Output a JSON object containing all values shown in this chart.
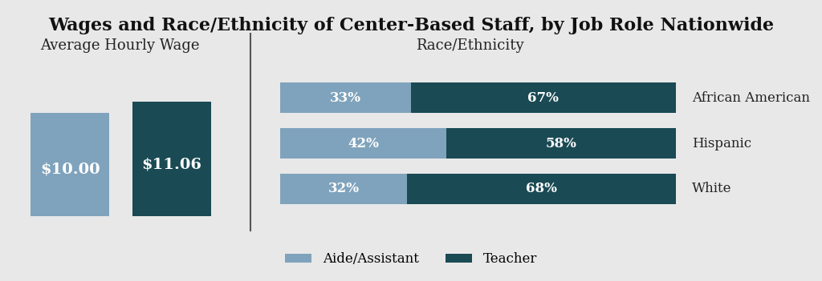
{
  "title": "Wages and Race/Ethnicity of Center-Based Staff, by Job Role Nationwide",
  "title_fontsize": 16,
  "background_color": "#e8e8e8",
  "color_aide": "#7fa3bc",
  "color_teacher": "#1a4a54",
  "left_subtitle": "Average Hourly Wage",
  "right_subtitle": "Race/Ethnicity",
  "wage_bars": [
    {
      "label": "Aide/Assistant",
      "value": "$10.00",
      "color": "#7fa3bc"
    },
    {
      "label": "Teacher",
      "value": "$11.06",
      "color": "#1a4a54"
    }
  ],
  "race_bars": [
    {
      "label": "African American",
      "aide_pct": 33,
      "teacher_pct": 67
    },
    {
      "label": "Hispanic",
      "aide_pct": 42,
      "teacher_pct": 58
    },
    {
      "label": "White",
      "aide_pct": 32,
      "teacher_pct": 68
    }
  ],
  "legend_labels": [
    "Aide/Assistant",
    "Teacher"
  ],
  "legend_colors": [
    "#7fa3bc",
    "#1a4a54"
  ],
  "subtitle_fontsize": 13,
  "bar_label_fontsize": 14,
  "race_label_fontsize": 12,
  "legend_fontsize": 12
}
